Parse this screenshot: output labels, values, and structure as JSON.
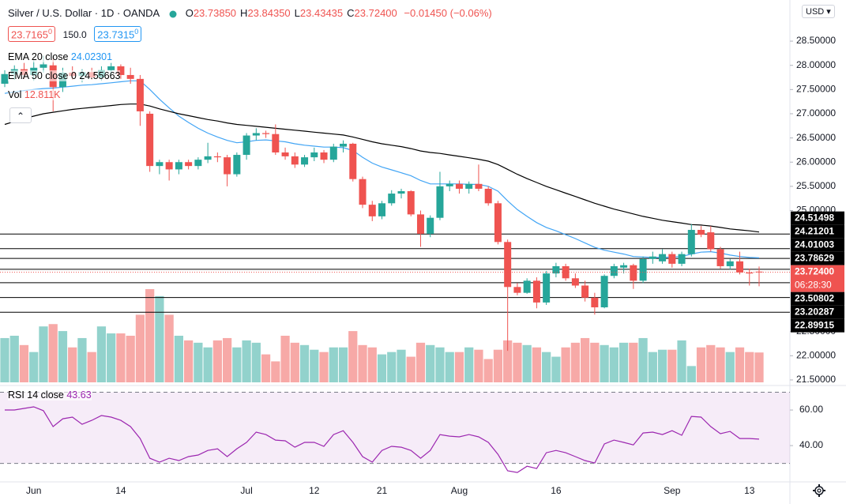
{
  "chart_data": {
    "type": "candlestick",
    "title": "Silver / U.S. Dollar · 1D · OANDA",
    "ohlc_legend": [
      {
        "key": "O",
        "value": 23.7385,
        "label": "23.73850"
      },
      {
        "key": "H",
        "value": 23.8435,
        "label": "23.84350"
      },
      {
        "key": "L",
        "value": 23.43435,
        "label": "23.43435"
      },
      {
        "key": "C",
        "value": 23.724,
        "label": "23.72400"
      }
    ],
    "change": {
      "value": -0.0145,
      "label": "−0.01450"
    },
    "change_pct": {
      "value": -0.06,
      "label": "(−0.06%)"
    },
    "bid": {
      "value": 23.7165,
      "label": "23.7165",
      "pip": "0"
    },
    "spread": {
      "value": 150,
      "label": "150.0"
    },
    "ask": {
      "value": 23.7315,
      "label": "23.7315",
      "pip": "0"
    },
    "currency": "USD",
    "up_color": "#26a69a",
    "down_color": "#ef5350",
    "x_labels": [
      null,
      null,
      null,
      "Jun",
      null,
      null,
      null,
      null,
      null,
      null,
      null,
      null,
      "14",
      null,
      null,
      null,
      null,
      null,
      null,
      null,
      null,
      null,
      null,
      null,
      null,
      "Jul",
      null,
      null,
      null,
      null,
      null,
      null,
      "12",
      null,
      null,
      null,
      null,
      null,
      null,
      "21",
      null,
      null,
      null,
      null,
      null,
      null,
      null,
      "Aug",
      null,
      null,
      null,
      null,
      null,
      null,
      null,
      null,
      null,
      "16",
      null,
      null,
      null,
      null,
      null,
      null,
      null,
      null,
      null,
      null,
      null,
      "Sep",
      null,
      null,
      null,
      null,
      null,
      null,
      null,
      "13",
      null
    ],
    "candles": {
      "open": [
        27.62,
        27.82,
        27.92,
        27.8,
        27.95,
        28.0,
        27.55,
        27.85,
        27.78,
        27.86,
        27.75,
        27.9,
        27.98,
        27.8,
        27.72,
        27.0,
        25.92,
        26.0,
        25.85,
        26.0,
        25.92,
        26.05,
        26.12,
        26.1,
        25.75,
        26.15,
        26.55,
        26.6,
        26.58,
        26.2,
        26.12,
        25.95,
        26.1,
        26.2,
        26.05,
        26.32,
        26.38,
        25.65,
        25.12,
        24.88,
        25.15,
        25.35,
        25.4,
        24.92,
        24.52,
        24.85,
        25.5,
        25.55,
        25.45,
        25.55,
        25.45,
        25.15,
        24.35,
        23.42,
        23.3,
        23.55,
        23.1,
        23.7,
        23.85,
        23.6,
        23.45,
        23.2,
        23.0,
        23.65,
        23.82,
        23.87,
        23.55,
        24.0,
        23.95,
        24.1,
        23.9,
        24.1,
        24.6,
        24.55,
        24.2,
        23.85,
        23.95,
        23.72,
        23.7385
      ],
      "high": [
        27.9,
        28.0,
        28.05,
        28.1,
        28.2,
        28.15,
        27.95,
        27.98,
        27.92,
        27.95,
        27.98,
        28.05,
        28.02,
        27.95,
        27.8,
        27.05,
        26.05,
        26.05,
        26.05,
        26.05,
        26.1,
        26.4,
        26.2,
        26.15,
        26.2,
        26.6,
        26.7,
        26.65,
        26.78,
        26.3,
        26.2,
        26.15,
        26.3,
        26.25,
        26.38,
        26.45,
        26.4,
        25.7,
        25.2,
        25.2,
        25.42,
        25.45,
        25.42,
        25.0,
        24.9,
        25.8,
        25.62,
        25.62,
        25.6,
        25.95,
        25.5,
        25.2,
        24.4,
        23.5,
        23.6,
        23.62,
        23.75,
        23.92,
        23.9,
        23.7,
        23.55,
        23.3,
        23.68,
        23.9,
        23.92,
        23.9,
        24.05,
        24.15,
        24.2,
        24.15,
        24.15,
        24.72,
        24.68,
        24.68,
        24.25,
        24.0,
        24.15,
        23.8,
        23.8435
      ],
      "low": [
        27.55,
        27.7,
        27.72,
        27.68,
        27.85,
        27.05,
        27.45,
        27.7,
        27.65,
        27.7,
        27.68,
        27.8,
        27.72,
        27.62,
        26.75,
        25.8,
        25.75,
        25.62,
        25.75,
        25.85,
        25.85,
        25.98,
        26.0,
        25.5,
        25.7,
        26.05,
        26.45,
        26.5,
        26.15,
        26.05,
        25.88,
        25.9,
        26.02,
        25.98,
        26.0,
        26.2,
        25.6,
        25.05,
        24.78,
        24.82,
        25.1,
        25.25,
        24.88,
        24.25,
        24.45,
        24.8,
        25.4,
        25.35,
        25.35,
        25.4,
        25.1,
        24.3,
        22.1,
        23.25,
        23.28,
        22.98,
        23.05,
        23.62,
        23.55,
        23.4,
        23.12,
        22.85,
        22.98,
        23.6,
        23.7,
        23.38,
        23.5,
        23.9,
        23.9,
        23.82,
        23.85,
        24.05,
        24.45,
        24.15,
        23.8,
        23.78,
        23.68,
        23.45,
        23.43435
      ],
      "close": [
        27.82,
        27.92,
        27.8,
        27.95,
        28.02,
        27.55,
        27.85,
        27.78,
        27.86,
        27.75,
        27.9,
        27.98,
        27.8,
        27.72,
        27.05,
        25.92,
        26.0,
        25.85,
        26.0,
        25.92,
        26.05,
        26.12,
        26.1,
        25.75,
        26.15,
        26.55,
        26.6,
        26.58,
        26.2,
        26.12,
        25.95,
        26.1,
        26.2,
        26.05,
        26.32,
        26.38,
        25.65,
        25.12,
        24.88,
        25.15,
        25.35,
        25.4,
        24.92,
        24.52,
        24.85,
        25.5,
        25.55,
        25.45,
        25.55,
        25.45,
        25.15,
        24.35,
        23.42,
        23.3,
        23.55,
        23.1,
        23.7,
        23.85,
        23.6,
        23.45,
        23.2,
        23.0,
        23.65,
        23.85,
        23.87,
        23.55,
        24.0,
        24.05,
        24.1,
        23.9,
        24.1,
        24.6,
        24.5,
        24.2,
        23.85,
        23.95,
        23.72,
        23.7,
        23.724
      ]
    },
    "ema": [
      {
        "name": "EMA 20 close",
        "color": "#42a5f5",
        "values": [
          27.42,
          27.45,
          27.48,
          27.5,
          27.52,
          27.53,
          27.55,
          27.57,
          27.59,
          27.6,
          27.62,
          27.64,
          27.66,
          27.68,
          27.68,
          27.5,
          27.3,
          27.12,
          26.95,
          26.82,
          26.7,
          26.6,
          26.52,
          26.45,
          26.4,
          26.42,
          26.45,
          26.46,
          26.44,
          26.42,
          26.38,
          26.35,
          26.33,
          26.31,
          26.31,
          26.3,
          26.24,
          26.1,
          25.98,
          25.9,
          25.84,
          25.78,
          25.72,
          25.62,
          25.55,
          25.55,
          25.55,
          25.55,
          25.54,
          25.54,
          25.5,
          25.4,
          25.2,
          25.02,
          24.88,
          24.75,
          24.65,
          24.58,
          24.5,
          24.42,
          24.33,
          24.24,
          24.18,
          24.14,
          24.1,
          24.05,
          24.04,
          24.03,
          24.03,
          24.04,
          24.05,
          24.1,
          24.14,
          24.15,
          24.12,
          24.08,
          24.05,
          24.03,
          24.02301
        ]
      },
      {
        "name": "EMA 50 close 0",
        "color": "#000000",
        "values": [
          26.78,
          26.84,
          26.9,
          26.95,
          27.0,
          27.03,
          27.06,
          27.09,
          27.11,
          27.13,
          27.15,
          27.17,
          27.19,
          27.2,
          27.2,
          27.16,
          27.1,
          27.05,
          27.0,
          26.96,
          26.92,
          26.88,
          26.85,
          26.81,
          26.78,
          26.76,
          26.74,
          26.72,
          26.7,
          26.68,
          26.66,
          26.64,
          26.62,
          26.6,
          26.58,
          26.56,
          26.52,
          26.47,
          26.42,
          26.38,
          26.35,
          26.32,
          26.28,
          26.23,
          26.2,
          26.18,
          26.15,
          26.12,
          26.09,
          26.06,
          26.02,
          25.95,
          25.85,
          25.75,
          25.66,
          25.58,
          25.5,
          25.43,
          25.36,
          25.29,
          25.22,
          25.15,
          25.09,
          25.03,
          24.98,
          24.93,
          24.88,
          24.84,
          24.8,
          24.77,
          24.74,
          24.71,
          24.7,
          24.68,
          24.65,
          24.62,
          24.6,
          24.58,
          24.55663
        ]
      }
    ],
    "volume": {
      "name": "Vol",
      "legend_label": "12.811K",
      "values": [
        19,
        20,
        16,
        13,
        24,
        25,
        22,
        15,
        19,
        13,
        24,
        21,
        21,
        20,
        29,
        40,
        37,
        29,
        20,
        18,
        17,
        15,
        18,
        19,
        15,
        18,
        17,
        12,
        9,
        20,
        17,
        16,
        14,
        13,
        15,
        15,
        22,
        16,
        15,
        12,
        13,
        14,
        11,
        17,
        16,
        15,
        13,
        13,
        15,
        14,
        10,
        14,
        18,
        17,
        16,
        15,
        13,
        11,
        15,
        17,
        19,
        17,
        16,
        15,
        17,
        17,
        19,
        13,
        14,
        14,
        18,
        7,
        15,
        16,
        15,
        13,
        15,
        13,
        12.811
      ]
    },
    "ylim": [
      21.45,
      29.35
    ],
    "yticks": [
      {
        "value": 21.5,
        "label": "21.50000"
      },
      {
        "value": 22,
        "label": "22.00000"
      },
      {
        "value": 22.5,
        "label": "22.50000"
      },
      {
        "value": 25,
        "label": "25.00000"
      },
      {
        "value": 25.5,
        "label": "25.50000"
      },
      {
        "value": 26,
        "label": "26.00000"
      },
      {
        "value": 26.5,
        "label": "26.50000"
      },
      {
        "value": 27,
        "label": "27.00000"
      },
      {
        "value": 27.5,
        "label": "27.50000"
      },
      {
        "value": 28,
        "label": "28.00000"
      },
      {
        "value": 28.5,
        "label": "28.50000"
      }
    ],
    "hlines": [
      {
        "value": 24.51498,
        "label": "24.51498"
      },
      {
        "value": 24.21201,
        "label": "24.21201"
      },
      {
        "value": 24.01003,
        "label": "24.01003"
      },
      {
        "value": 23.78629,
        "label": "23.78629"
      },
      {
        "value": 23.50802,
        "label": "23.50802"
      },
      {
        "value": 23.20287,
        "label": "23.20287"
      },
      {
        "value": 22.89915,
        "label": "22.89915"
      }
    ],
    "price_line": {
      "value": 23.724,
      "label": "23.72400",
      "countdown": "06:28:30",
      "color": "#ef5350"
    },
    "rsi": {
      "name": "RSI 14 close",
      "color": "#9c27b0",
      "ylim": [
        19.6,
        72.9
      ],
      "yticks": [
        {
          "value": 40,
          "label": "40.00"
        },
        {
          "value": 60,
          "label": "60.00"
        }
      ],
      "bands": [
        30,
        70
      ],
      "values": [
        60,
        60,
        60.9,
        61.8,
        59.6,
        50.7,
        55.1,
        56,
        52,
        54.2,
        56.9,
        56,
        54.2,
        50.7,
        44,
        32.9,
        30.7,
        32.9,
        31.6,
        33.8,
        34.7,
        37.3,
        38.2,
        33.8,
        38.2,
        41.8,
        47.6,
        46.2,
        43.1,
        42.7,
        39.1,
        41.8,
        41.8,
        39.6,
        46.2,
        48.4,
        41.8,
        33.8,
        30.7,
        37.3,
        39.6,
        39.1,
        37.3,
        32.9,
        37.3,
        46.2,
        45.3,
        44.9,
        46.2,
        44.9,
        41.8,
        35.1,
        25.8,
        24.9,
        28.4,
        27.1,
        36,
        37.3,
        36,
        33.8,
        31.6,
        30.2,
        40.9,
        43.1,
        41.8,
        40.4,
        47.1,
        47.6,
        46.2,
        48.4,
        45.8,
        56.4,
        56,
        50.7,
        46.7,
        48,
        44,
        44,
        43.63
      ]
    }
  }
}
